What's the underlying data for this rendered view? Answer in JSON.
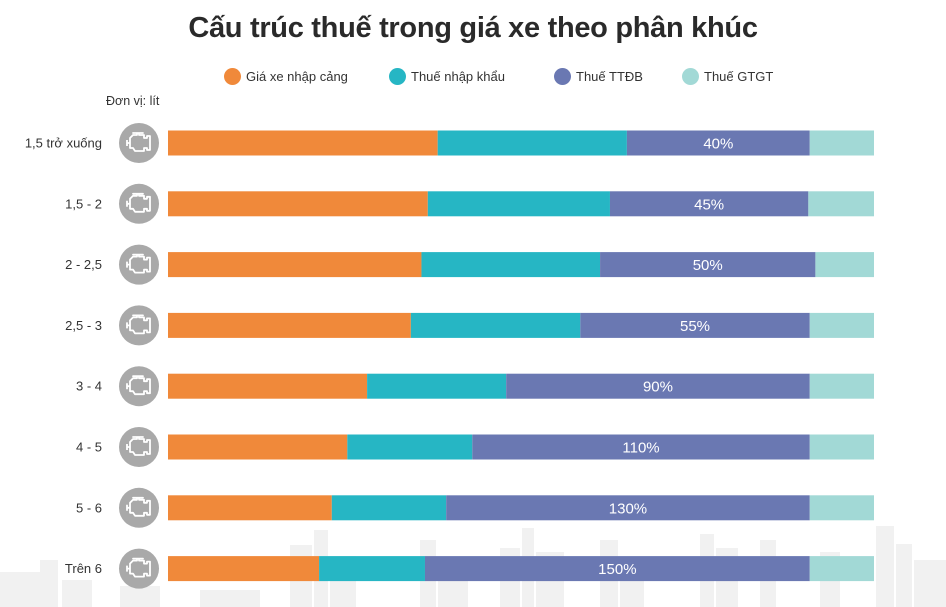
{
  "title": "Cấu trúc thuế trong giá xe theo phân khúc",
  "unit_label": "Đơn vị: lít",
  "legend": [
    {
      "label": "Giá xe nhập cảng",
      "color": "#f0893a"
    },
    {
      "label": "Thuế nhập khẩu",
      "color": "#26b6c4"
    },
    {
      "label": "Thuế TTĐB",
      "color": "#6a78b2"
    },
    {
      "label": "Thuế GTGT",
      "color": "#a2d9d6"
    }
  ],
  "row_icon": "engine-icon",
  "chart_data": {
    "type": "bar",
    "orientation": "horizontal",
    "stacked": true,
    "normalized": true,
    "title": "Cấu trúc thuế trong giá xe theo phân khúc",
    "unit": "Đơn vị: lít",
    "legend_position": "top",
    "categories": [
      "1,5 trở xuống",
      "1,5 - 2",
      "2 - 2,5",
      "2,5 - 3",
      "3 - 4",
      "4 - 5",
      "5 - 6",
      "Trên 6"
    ],
    "series": [
      {
        "name": "Giá xe nhập cảng",
        "color": "#f0893a",
        "values": [
          38.2,
          36.8,
          35.9,
          34.4,
          28.2,
          25.4,
          23.2,
          21.4
        ]
      },
      {
        "name": "Thuế nhập khẩu",
        "color": "#26b6c4",
        "values": [
          26.8,
          25.8,
          25.3,
          24.0,
          19.7,
          17.7,
          16.2,
          15.0
        ]
      },
      {
        "name": "Thuế TTĐB",
        "color": "#6a78b2",
        "values": [
          25.9,
          28.1,
          30.5,
          32.5,
          43.0,
          47.8,
          51.5,
          54.5
        ]
      },
      {
        "name": "Thuế GTGT",
        "color": "#a2d9d6",
        "values": [
          9.1,
          9.3,
          8.3,
          9.1,
          9.1,
          9.1,
          9.1,
          9.1
        ]
      }
    ],
    "data_labels": [
      "40%",
      "45%",
      "50%",
      "55%",
      "90%",
      "110%",
      "130%",
      "150%"
    ],
    "data_label_series": "Thuế TTĐB"
  }
}
